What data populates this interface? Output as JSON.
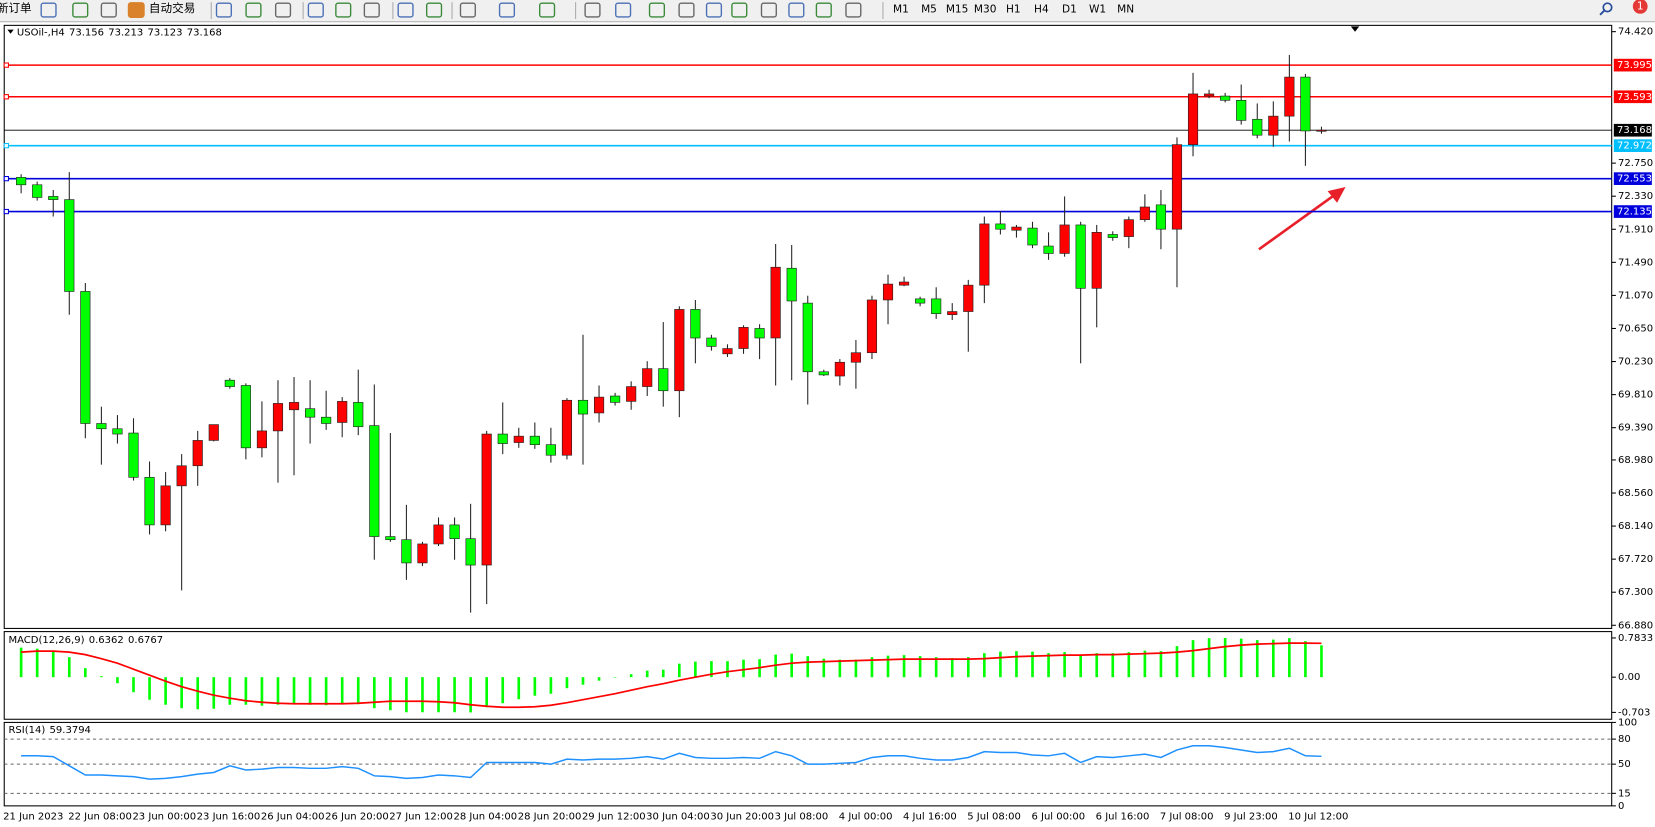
{
  "toolbar": {
    "buttons": [
      "新订单",
      "自动交易"
    ],
    "timeframes": [
      "M1",
      "M5",
      "M15",
      "M30",
      "H1",
      "H4",
      "D1",
      "W1",
      "MN"
    ],
    "alerts": 1
  },
  "chart_data": [
    {
      "type": "candlestick",
      "symbol": "USOil-,H4",
      "categories": [
        "21 Jun 2023",
        null,
        null,
        "22 Jun 08:00",
        null,
        null,
        null,
        "23 Jun 00:00",
        null,
        null,
        null,
        "23 Jun 16:00",
        null,
        null,
        null,
        "26 Jun 04:00",
        null,
        null,
        null,
        "26 Jun 20:00",
        null,
        null,
        null,
        "27 Jun 12:00",
        null,
        null,
        null,
        "28 Jun 04:00",
        null,
        null,
        null,
        "28 Jun 20:00",
        null,
        null,
        null,
        "29 Jun 12:00",
        null,
        null,
        null,
        "30 Jun 04:00",
        null,
        null,
        null,
        "30 Jun 20:00",
        null,
        null,
        null,
        "3 Jul 08:00",
        null,
        null,
        null,
        "4 Jul 00:00",
        null,
        null,
        null,
        "4 Jul 16:00",
        null,
        null,
        null,
        "5 Jul 08:00",
        null,
        null,
        null,
        "6 Jul 00:00",
        null,
        null,
        null,
        "6 Jul 16:00",
        null,
        null,
        null,
        "7 Jul 08:00",
        null,
        null,
        null,
        "9 Jul 23:00",
        null,
        null,
        null,
        "10 Jul 12:00",
        null,
        null
      ],
      "open": [
        72.569,
        72.475,
        72.327,
        72.287,
        71.12,
        69.443,
        69.376,
        69.322,
        68.759,
        68.155,
        68.651,
        68.906,
        69.228,
        69.993,
        69.926,
        69.134,
        69.349,
        69.617,
        69.631,
        69.523,
        69.456,
        69.711,
        69.416,
        68.007,
        67.967,
        67.672,
        67.913,
        68.155,
        67.98,
        67.645,
        69.309,
        69.201,
        69.282,
        69.174,
        69.04,
        69.738,
        69.577,
        69.792,
        69.724,
        69.912,
        70.14,
        69.859,
        70.892,
        70.529,
        70.328,
        70.395,
        70.65,
        70.529,
        71.415,
        70.972,
        70.1,
        70.046,
        70.221,
        70.342,
        71.012,
        71.2,
        71.026,
        71.026,
        70.825,
        70.865,
        71.2,
        71.978,
        71.898,
        71.925,
        71.697,
        71.603,
        71.965,
        71.16,
        71.844,
        71.817,
        72.032,
        72.22,
        71.911,
        72.985,
        73.602,
        73.602,
        73.548,
        73.307,
        73.105,
        73.347,
        73.843,
        73.156
      ],
      "high": [
        72.609,
        72.515,
        72.408,
        72.636,
        71.227,
        69.657,
        69.55,
        69.51,
        68.96,
        68.826,
        69.054,
        69.349,
        69.429,
        70.02,
        69.953,
        69.724,
        69.993,
        70.033,
        69.993,
        69.859,
        69.778,
        70.127,
        69.939,
        69.322,
        68.41,
        67.94,
        68.249,
        68.249,
        68.423,
        69.349,
        69.711,
        69.389,
        69.456,
        69.389,
        69.765,
        70.57,
        69.926,
        69.832,
        69.979,
        70.234,
        70.731,
        70.932,
        71.012,
        70.57,
        70.449,
        70.69,
        70.704,
        71.723,
        71.71,
        71.066,
        70.127,
        70.261,
        70.503,
        71.066,
        71.334,
        71.308,
        71.053,
        71.173,
        70.972,
        71.267,
        72.072,
        72.139,
        71.965,
        72.005,
        71.871,
        72.327,
        72.005,
        71.965,
        71.884,
        72.072,
        72.354,
        72.408,
        73.078,
        73.897,
        73.682,
        73.642,
        73.749,
        73.508,
        73.535,
        74.125,
        73.883,
        73.213
      ],
      "low": [
        72.367,
        72.274,
        72.072,
        70.825,
        69.255,
        68.92,
        69.188,
        68.718,
        68.034,
        68.074,
        67.323,
        68.651,
        69.215,
        69.885,
        68.987,
        69.013,
        68.691,
        68.785,
        69.188,
        69.362,
        69.268,
        69.295,
        67.712,
        67.94,
        67.457,
        67.632,
        67.886,
        67.712,
        67.041,
        67.148,
        69.054,
        69.134,
        69.121,
        68.946,
        68.987,
        68.92,
        69.456,
        69.671,
        69.617,
        69.792,
        69.657,
        69.523,
        70.207,
        70.368,
        70.288,
        70.328,
        70.261,
        69.926,
        69.993,
        69.684,
        70.046,
        69.926,
        69.885,
        70.261,
        70.704,
        71.187,
        70.932,
        70.771,
        70.757,
        70.355,
        70.972,
        71.844,
        71.804,
        71.67,
        71.522,
        71.562,
        70.207,
        70.664,
        71.764,
        71.67,
        72.005,
        71.656,
        71.173,
        72.837,
        73.575,
        73.521,
        73.239,
        73.065,
        72.958,
        73.025,
        72.716,
        73.123
      ],
      "close": [
        72.475,
        72.314,
        72.287,
        71.12,
        69.443,
        69.376,
        69.309,
        68.759,
        68.155,
        68.651,
        68.906,
        69.228,
        69.429,
        69.912,
        69.134,
        69.349,
        69.698,
        69.711,
        69.523,
        69.443,
        69.724,
        69.402,
        68.007,
        67.967,
        67.672,
        67.913,
        68.155,
        67.98,
        67.645,
        69.309,
        69.188,
        69.282,
        69.174,
        69.04,
        69.738,
        69.563,
        69.778,
        69.711,
        69.912,
        70.14,
        69.859,
        70.892,
        70.529,
        70.422,
        70.395,
        70.664,
        70.529,
        71.428,
        70.999,
        70.1,
        70.06,
        70.221,
        70.342,
        71.012,
        71.214,
        71.24,
        70.972,
        70.838,
        70.865,
        71.2,
        71.978,
        71.911,
        71.938,
        71.71,
        71.603,
        71.965,
        71.16,
        71.871,
        71.804,
        72.032,
        72.193,
        71.911,
        72.985,
        73.629,
        73.629,
        73.548,
        73.293,
        73.105,
        73.347,
        73.843,
        73.159,
        73.168
      ],
      "up_color": "#ff0000",
      "down_color": "#00ff00",
      "ylim": [
        66.84,
        74.5
      ],
      "yticks": [
        {
          "value": 74.42,
          "label": "74.420"
        },
        {
          "value": 72.75,
          "label": "72.750"
        },
        {
          "value": 72.33,
          "label": "72.330"
        },
        {
          "value": 71.91,
          "label": "71.910"
        },
        {
          "value": 71.49,
          "label": "71.490"
        },
        {
          "value": 71.07,
          "label": "71.070"
        },
        {
          "value": 70.65,
          "label": "70.650"
        },
        {
          "value": 70.23,
          "label": "70.230"
        },
        {
          "value": 69.81,
          "label": "69.810"
        },
        {
          "value": 69.39,
          "label": "69.390"
        },
        {
          "value": 68.98,
          "label": "68.980"
        },
        {
          "value": 68.56,
          "label": "68.560"
        },
        {
          "value": 68.14,
          "label": "68.140"
        },
        {
          "value": 67.72,
          "label": "67.720"
        },
        {
          "value": 67.3,
          "label": "67.300"
        },
        {
          "value": 66.88,
          "label": "66.880"
        }
      ],
      "grid": false,
      "hlines": [
        {
          "value": 73.995,
          "color": "#ff0000"
        },
        {
          "value": 73.593,
          "color": "#ff0000"
        },
        {
          "value": 72.972,
          "color": "#00bfff"
        },
        {
          "value": 72.553,
          "color": "#0000dd"
        },
        {
          "value": 72.135,
          "color": "#0000dd"
        }
      ],
      "price_line_color": "#000000"
    },
    {
      "type": "macd",
      "title": "MACD(12,26,9)",
      "values": [
        0.59,
        0.57,
        0.52,
        0.4,
        0.18,
        0.02,
        -0.12,
        -0.3,
        -0.45,
        -0.55,
        -0.62,
        -0.64,
        -0.63,
        -0.55,
        -0.55,
        -0.57,
        -0.55,
        -0.54,
        -0.55,
        -0.56,
        -0.54,
        -0.54,
        -0.62,
        -0.66,
        -0.7,
        -0.7,
        -0.7,
        -0.7,
        -0.703,
        -0.6,
        -0.52,
        -0.44,
        -0.37,
        -0.33,
        -0.22,
        -0.15,
        -0.07,
        -0.01,
        0.06,
        0.13,
        0.15,
        0.27,
        0.31,
        0.32,
        0.32,
        0.35,
        0.36,
        0.45,
        0.47,
        0.42,
        0.37,
        0.35,
        0.35,
        0.4,
        0.43,
        0.44,
        0.42,
        0.4,
        0.38,
        0.4,
        0.48,
        0.51,
        0.52,
        0.51,
        0.48,
        0.5,
        0.45,
        0.48,
        0.48,
        0.5,
        0.53,
        0.52,
        0.62,
        0.74,
        0.78,
        0.7833,
        0.77,
        0.74,
        0.75,
        0.78,
        0.72,
        0.6362
      ],
      "color": "#00ff00",
      "signal_values": [
        0.5,
        0.52,
        0.52,
        0.5,
        0.45,
        0.37,
        0.28,
        0.16,
        0.04,
        -0.08,
        -0.19,
        -0.28,
        -0.36,
        -0.42,
        -0.47,
        -0.5,
        -0.52,
        -0.53,
        -0.53,
        -0.53,
        -0.53,
        -0.52,
        -0.5,
        -0.48,
        -0.48,
        -0.48,
        -0.49,
        -0.51,
        -0.55,
        -0.58,
        -0.6,
        -0.6,
        -0.59,
        -0.56,
        -0.51,
        -0.45,
        -0.39,
        -0.33,
        -0.26,
        -0.19,
        -0.13,
        -0.06,
        0.0,
        0.06,
        0.11,
        0.15,
        0.19,
        0.24,
        0.28,
        0.3,
        0.31,
        0.32,
        0.33,
        0.34,
        0.35,
        0.36,
        0.36,
        0.36,
        0.36,
        0.36,
        0.37,
        0.39,
        0.41,
        0.42,
        0.43,
        0.44,
        0.44,
        0.45,
        0.45,
        0.46,
        0.47,
        0.48,
        0.5,
        0.53,
        0.57,
        0.61,
        0.64,
        0.66,
        0.67,
        0.68,
        0.68,
        0.6767
      ],
      "signal_color": "#ff0000",
      "ylim": [
        -0.84,
        0.91
      ],
      "yticks": [
        0.7833,
        {
          "value": 0,
          "label": "0.00"
        },
        -0.703
      ]
    },
    {
      "type": "line",
      "title": "RSI(14)",
      "values": [
        60,
        60,
        59,
        48,
        37,
        37,
        36,
        35,
        32,
        33,
        35,
        38,
        40,
        48,
        43,
        44,
        46,
        46,
        45,
        45,
        47,
        45,
        36,
        35,
        33,
        34,
        37,
        36,
        34,
        52,
        52,
        52,
        52,
        50,
        56,
        55,
        56,
        56,
        57,
        59,
        56,
        63,
        58,
        57,
        57,
        58,
        57,
        65,
        60,
        50,
        50,
        51,
        52,
        58,
        60,
        60,
        57,
        55,
        55,
        58,
        65,
        64,
        64,
        61,
        60,
        63,
        52,
        59,
        58,
        60,
        62,
        58,
        67,
        72,
        72,
        70,
        67,
        64,
        65,
        69,
        60,
        59.3794
      ],
      "color": "#1e90ff",
      "ylim": [
        0,
        100
      ],
      "yticks": [
        100,
        80,
        50,
        15,
        0
      ]
    }
  ]
}
